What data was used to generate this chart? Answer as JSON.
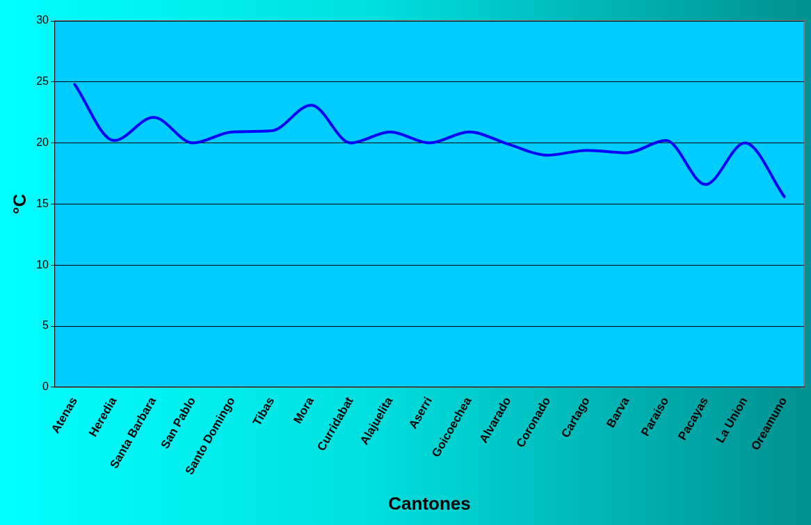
{
  "chart_data": {
    "type": "line",
    "xlabel": "Cantones",
    "ylabel": "°C",
    "categories": [
      "Atenas",
      "Heredia",
      "Santa Barbara",
      "San Pablo",
      "Santo Domingo",
      "Tibas",
      "Mora",
      "Curridabat",
      "Alajuelita",
      "Aserri",
      "Goicoechea",
      "Alvarado",
      "Coronado",
      "Cartago",
      "Barva",
      "Paraiso",
      "Pacayas",
      "La Union",
      "Oreamuno"
    ],
    "series": [
      {
        "color": "#0000ff",
        "values": [
          24.8,
          20.2,
          22.1,
          20.0,
          20.9,
          21.0,
          23.1,
          20.0,
          20.9,
          20.0,
          20.9,
          19.9,
          19.0,
          19.4,
          19.2,
          20.2,
          16.6,
          20.0,
          15.6
        ]
      }
    ],
    "ylim": [
      0,
      30
    ],
    "yticks": [
      0,
      5,
      10,
      15,
      20,
      25,
      30
    ],
    "grid": "y",
    "legend": false,
    "marker": "none",
    "line_style": "solid"
  }
}
